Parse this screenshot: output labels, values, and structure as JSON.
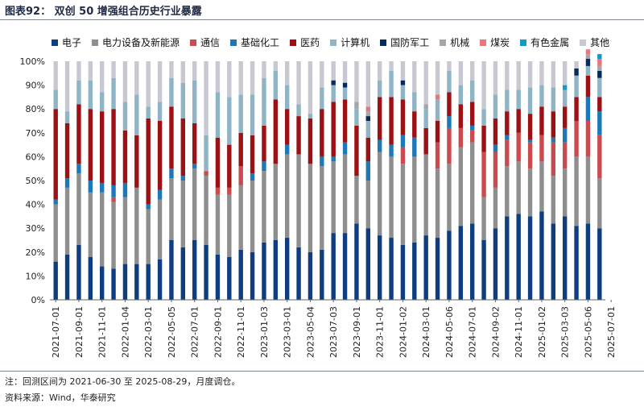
{
  "header": {
    "title": "图表92： 双创 50 增强组合历史行业暴露"
  },
  "notes": {
    "note": "注：回测区间为 2021-06-30 至 2025-08-29，月度调仓。",
    "source": "资料来源：Wind，华泰研究"
  },
  "chart_data": {
    "type": "bar",
    "stacked": true,
    "title": "双创 50 增强组合历史行业暴露",
    "xlabel": "",
    "ylabel": "",
    "ylim": [
      0,
      100
    ],
    "yticks": [
      "0%",
      "10%",
      "20%",
      "30%",
      "40%",
      "50%",
      "60%",
      "70%",
      "80%",
      "90%",
      "100%"
    ],
    "tick_labels": [
      "2021-07-01",
      "2021-09-01",
      "2021-11-01",
      "2022-01-04",
      "2022-03-01",
      "2022-05-05",
      "2022-07-01",
      "2022-09-01",
      "2022-11-01",
      "2023-01-03",
      "2023-03-01",
      "2023-05-04",
      "2023-07-03",
      "2023-09-01",
      "2023-11-01",
      "2024-01-02",
      "2024-03-01",
      "2024-05-06",
      "2024-07-01",
      "2024-09-02",
      "2024-11-01",
      "2025-01-02",
      "2025-03-03",
      "2025-05-06",
      "2025-07-01"
    ],
    "series": [
      {
        "name": "电子",
        "color": "#0e3e80",
        "values": [
          16,
          19,
          23,
          18,
          14,
          13,
          15,
          15,
          15,
          17,
          25,
          22,
          25,
          23,
          19,
          18,
          21,
          20,
          24,
          25,
          26,
          22,
          20,
          21,
          28,
          28,
          32,
          30,
          27,
          26,
          23,
          24,
          27,
          26,
          29,
          31,
          32,
          25,
          30,
          35,
          36,
          35,
          37,
          32,
          35,
          31,
          32,
          30
        ]
      },
      {
        "name": "电力设备及新能源",
        "color": "#8e8e8e",
        "values": [
          24,
          28,
          30,
          27,
          31,
          28,
          28,
          32,
          23,
          25,
          26,
          28,
          30,
          29,
          25,
          26,
          27,
          30,
          30,
          32,
          35,
          39,
          37,
          35,
          30,
          33,
          20,
          20,
          35,
          34,
          34,
          36,
          34,
          29,
          28,
          33,
          34,
          18,
          17,
          21,
          22,
          20,
          21,
          20,
          20,
          29,
          28,
          21
        ]
      },
      {
        "name": "通信",
        "color": "#c94a4f",
        "values": [
          0,
          0,
          0,
          0,
          0,
          2,
          0,
          0,
          0,
          0,
          0,
          0,
          0,
          2,
          3,
          3,
          8,
          0,
          0,
          0,
          0,
          0,
          0,
          0,
          0,
          0,
          0,
          0,
          0,
          0,
          7,
          0,
          0,
          11,
          15,
          8,
          5,
          19,
          15,
          11,
          12,
          11,
          11,
          14,
          11,
          15,
          15,
          18
        ]
      },
      {
        "name": "基础化工",
        "color": "#1c78b7",
        "values": [
          2,
          4,
          4,
          5,
          4,
          5,
          6,
          0,
          2,
          4,
          4,
          2,
          2,
          0,
          0,
          0,
          0,
          3,
          4,
          0,
          4,
          0,
          0,
          4,
          2,
          5,
          0,
          8,
          5,
          5,
          5,
          8,
          0,
          0,
          5,
          0,
          2,
          0,
          3,
          2,
          0,
          1,
          0,
          2,
          6,
          0,
          10,
          10
        ]
      },
      {
        "name": "医药",
        "color": "#9b1114",
        "values": [
          38,
          23,
          25,
          30,
          30,
          32,
          22,
          22,
          36,
          29,
          26,
          24,
          17,
          0,
          21,
          18,
          14,
          16,
          15,
          27,
          15,
          16,
          19,
          20,
          23,
          18,
          21,
          10,
          18,
          20,
          15,
          11,
          11,
          9,
          10,
          10,
          10,
          11,
          11,
          10,
          10,
          11,
          12,
          11,
          9,
          10,
          9,
          6
        ]
      },
      {
        "name": "计算机",
        "color": "#8fb4c6",
        "values": [
          8,
          5,
          10,
          12,
          8,
          13,
          12,
          17,
          5,
          8,
          12,
          15,
          18,
          15,
          19,
          20,
          16,
          17,
          20,
          12,
          10,
          5,
          2,
          9,
          7,
          5,
          7,
          7,
          7,
          11,
          6,
          8,
          8,
          9,
          9,
          8,
          9,
          7,
          10,
          9,
          8,
          11,
          9,
          10,
          7,
          9,
          4,
          8
        ]
      },
      {
        "name": "国防军工",
        "color": "#062a5a",
        "values": [
          0,
          0,
          0,
          0,
          0,
          0,
          0,
          0,
          0,
          0,
          0,
          0,
          0,
          0,
          0,
          0,
          0,
          0,
          0,
          0,
          0,
          0,
          0,
          0,
          2,
          2,
          0,
          2,
          0,
          0,
          2,
          0,
          0,
          0,
          0,
          0,
          0,
          0,
          0,
          0,
          0,
          0,
          0,
          0,
          0,
          3,
          3,
          3
        ]
      },
      {
        "name": "机械",
        "color": "#a6a6a6",
        "values": [
          0,
          0,
          0,
          0,
          0,
          0,
          0,
          0,
          0,
          0,
          0,
          0,
          0,
          0,
          0,
          0,
          0,
          0,
          0,
          0,
          0,
          0,
          0,
          0,
          0,
          0,
          3,
          2,
          0,
          0,
          0,
          0,
          2,
          0,
          0,
          0,
          0,
          0,
          0,
          0,
          0,
          0,
          0,
          0,
          0,
          0,
          2,
          2
        ]
      },
      {
        "name": "煤炭",
        "color": "#e7777d",
        "values": [
          0,
          0,
          0,
          0,
          0,
          0,
          0,
          0,
          0,
          0,
          0,
          0,
          0,
          0,
          0,
          0,
          0,
          0,
          0,
          0,
          0,
          0,
          0,
          0,
          0,
          0,
          0,
          2,
          0,
          0,
          0,
          0,
          0,
          2,
          0,
          0,
          0,
          0,
          0,
          0,
          0,
          0,
          0,
          0,
          0,
          0,
          2,
          3
        ]
      },
      {
        "name": "有色金属",
        "color": "#1597cc",
        "values": [
          0,
          0,
          0,
          0,
          0,
          0,
          0,
          0,
          0,
          0,
          0,
          0,
          0,
          0,
          0,
          0,
          0,
          0,
          0,
          0,
          0,
          0,
          0,
          0,
          0,
          0,
          0,
          0,
          0,
          0,
          0,
          0,
          0,
          0,
          0,
          0,
          0,
          0,
          0,
          0,
          0,
          0,
          0,
          0,
          2,
          0,
          0,
          2
        ]
      },
      {
        "name": "其他",
        "color": "#c8c8d2",
        "values": [
          12,
          21,
          8,
          8,
          13,
          7,
          17,
          14,
          19,
          17,
          7,
          9,
          8,
          31,
          13,
          15,
          14,
          14,
          7,
          4,
          10,
          18,
          22,
          11,
          8,
          9,
          17,
          19,
          8,
          4,
          8,
          13,
          18,
          14,
          4,
          10,
          8,
          20,
          14,
          12,
          12,
          11,
          10,
          11,
          10,
          3,
          0,
          0
        ]
      }
    ]
  }
}
